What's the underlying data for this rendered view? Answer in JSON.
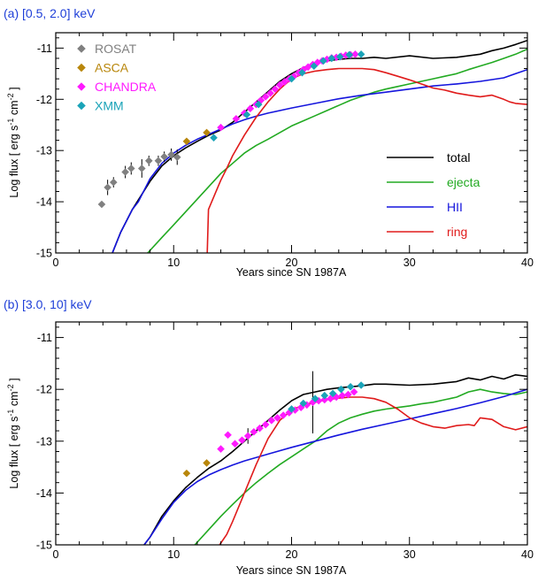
{
  "chart_data": [
    {
      "type": "line",
      "title": "(a) [0.5, 2.0] keV",
      "xlabel": "Years since SN 1987A",
      "ylabel_html": "Log flux [ erg s<tspan dy='-4' font-size='9'>-1</tspan><tspan dy='4'> cm</tspan><tspan dy='-4' font-size='9'>-2</tspan><tspan dy='4'> ]</tspan>",
      "ylabel": "Log flux [ erg s-1 cm-2 ]",
      "xlim": [
        0,
        40
      ],
      "ylim": [
        -15,
        -10.7
      ],
      "xticks": [
        "0",
        "10",
        "20",
        "30",
        "40"
      ],
      "yticks": [
        "-15",
        "-14",
        "-13",
        "-12",
        "-11"
      ],
      "grid": false,
      "legend": "right",
      "series": [
        {
          "name": "total",
          "color": "#000000",
          "x": [
            4.8,
            5.5,
            6.5,
            8,
            9,
            10,
            11,
            12,
            13,
            14,
            15,
            16,
            17,
            18,
            19,
            20,
            21,
            22,
            23,
            24,
            25,
            26,
            27,
            28,
            30,
            32,
            34,
            36,
            37,
            38,
            39,
            40
          ],
          "y": [
            -15,
            -14.6,
            -14.15,
            -13.6,
            -13.3,
            -13.1,
            -12.95,
            -12.82,
            -12.7,
            -12.6,
            -12.45,
            -12.25,
            -12.05,
            -11.85,
            -11.65,
            -11.5,
            -11.38,
            -11.3,
            -11.25,
            -11.22,
            -11.2,
            -11.2,
            -11.18,
            -11.2,
            -11.15,
            -11.2,
            -11.18,
            -11.12,
            -11.05,
            -11.0,
            -10.93,
            -10.85
          ]
        },
        {
          "name": "ejecta",
          "color": "#22aa22",
          "x": [
            7.8,
            9,
            10,
            11,
            12,
            13,
            14,
            15,
            16,
            17,
            18,
            19,
            20,
            21,
            22,
            23,
            24,
            25,
            26,
            27,
            28,
            29,
            30,
            31,
            32,
            33,
            34,
            35,
            36,
            37,
            38,
            39,
            40
          ],
          "y": [
            -15,
            -14.7,
            -14.45,
            -14.2,
            -13.95,
            -13.7,
            -13.45,
            -13.25,
            -13.05,
            -12.9,
            -12.78,
            -12.65,
            -12.52,
            -12.42,
            -12.32,
            -12.22,
            -12.12,
            -12.02,
            -11.94,
            -11.86,
            -11.8,
            -11.75,
            -11.7,
            -11.65,
            -11.6,
            -11.55,
            -11.5,
            -11.42,
            -11.35,
            -11.28,
            -11.2,
            -11.12,
            -11.02
          ]
        },
        {
          "name": "HII",
          "color": "#1515dd",
          "x": [
            4.8,
            5.5,
            6.5,
            7,
            8,
            9,
            10,
            11,
            12,
            13,
            14,
            15,
            16,
            17,
            18,
            20,
            22,
            24,
            26,
            28,
            30,
            32,
            34,
            36,
            38,
            39,
            40
          ],
          "y": [
            -15,
            -14.6,
            -14.15,
            -14.0,
            -13.55,
            -13.25,
            -13.05,
            -12.9,
            -12.78,
            -12.68,
            -12.58,
            -12.48,
            -12.4,
            -12.33,
            -12.27,
            -12.17,
            -12.08,
            -11.99,
            -11.92,
            -11.86,
            -11.8,
            -11.74,
            -11.7,
            -11.65,
            -11.58,
            -11.5,
            -11.42
          ]
        },
        {
          "name": "ring",
          "color": "#e01b1b",
          "x": [
            12.85,
            12.95,
            13.5,
            14,
            14.5,
            15,
            16,
            17,
            18,
            19,
            20,
            21,
            22,
            23,
            24,
            25,
            26,
            27,
            28,
            29,
            30,
            31,
            32,
            33,
            34,
            35,
            36,
            37,
            38,
            38.5,
            39,
            40
          ],
          "y": [
            -15,
            -14.15,
            -13.85,
            -13.58,
            -13.35,
            -13.1,
            -12.7,
            -12.35,
            -12.05,
            -11.8,
            -11.6,
            -11.5,
            -11.45,
            -11.42,
            -11.4,
            -11.4,
            -11.4,
            -11.42,
            -11.48,
            -11.55,
            -11.62,
            -11.7,
            -11.78,
            -11.82,
            -11.88,
            -11.92,
            -11.95,
            -11.92,
            -12.0,
            -12.05,
            -12.08,
            -12.1
          ]
        }
      ],
      "points": [
        {
          "name": "ROSAT",
          "color": "#808080",
          "x": [
            3.9,
            4.4,
            4.9,
            5.9,
            6.4,
            7.3,
            7.9,
            8.7,
            9.2,
            9.8,
            10.3
          ],
          "y": [
            -14.05,
            -13.72,
            -13.62,
            -13.42,
            -13.35,
            -13.35,
            -13.2,
            -13.2,
            -13.12,
            -13.08,
            -13.13
          ],
          "err": [
            0,
            0.15,
            0.1,
            0.12,
            0.12,
            0.18,
            0.1,
            0.1,
            0.1,
            0.12,
            0.15
          ]
        },
        {
          "name": "ASCA",
          "color": "#b8860b",
          "x": [
            11.1,
            12.8
          ],
          "y": [
            -12.82,
            -12.65
          ],
          "err": [
            0,
            0
          ]
        },
        {
          "name": "CHANDRA",
          "color": "#ff1aff",
          "x": [
            14.0,
            15.3,
            16.0,
            16.5,
            17.0,
            17.4,
            17.8,
            18.2,
            18.6,
            19.0,
            19.4,
            19.8,
            20.2,
            20.6,
            21.0,
            21.4,
            21.8,
            22.2,
            22.6,
            23.0,
            23.4,
            23.8,
            24.2,
            24.6,
            25.0,
            25.4
          ],
          "y": [
            -12.55,
            -12.38,
            -12.27,
            -12.18,
            -12.1,
            -12.02,
            -11.95,
            -11.88,
            -11.8,
            -11.72,
            -11.66,
            -11.6,
            -11.55,
            -11.48,
            -11.42,
            -11.37,
            -11.32,
            -11.28,
            -11.25,
            -11.22,
            -11.19,
            -11.18,
            -11.16,
            -11.14,
            -11.13,
            -11.12
          ],
          "err": []
        },
        {
          "name": "XMM",
          "color": "#1aa3b8",
          "x": [
            13.4,
            16.2,
            17.2,
            20.0,
            20.9,
            21.9,
            22.7,
            23.4,
            24.1,
            24.9,
            25.9
          ],
          "y": [
            -12.75,
            -12.3,
            -12.1,
            -11.6,
            -11.48,
            -11.35,
            -11.25,
            -11.2,
            -11.17,
            -11.13,
            -11.12
          ],
          "err": []
        }
      ],
      "legend_items": [
        {
          "label": "ROSAT",
          "color": "#808080",
          "kind": "marker"
        },
        {
          "label": "ASCA",
          "color": "#b8860b",
          "kind": "marker"
        },
        {
          "label": "CHANDRA",
          "color": "#ff1aff",
          "kind": "marker"
        },
        {
          "label": "XMM",
          "color": "#1aa3b8",
          "kind": "marker"
        },
        {
          "label": "total",
          "color": "#000000",
          "kind": "line"
        },
        {
          "label": "ejecta",
          "color": "#22aa22",
          "kind": "line"
        },
        {
          "label": "HII",
          "color": "#1515dd",
          "kind": "line"
        },
        {
          "label": "ring",
          "color": "#e01b1b",
          "kind": "line"
        }
      ]
    },
    {
      "type": "line",
      "title": "(b) [3.0, 10] keV",
      "xlabel": "Years since SN 1987A",
      "ylabel": "Log flux [ erg s-1 cm-2 ]",
      "xlim": [
        0,
        40
      ],
      "ylim": [
        -15,
        -10.7
      ],
      "xticks": [
        "0",
        "10",
        "20",
        "30",
        "40"
      ],
      "yticks": [
        "-15",
        "-14",
        "-13",
        "-12",
        "-11"
      ],
      "grid": false,
      "series": [
        {
          "name": "total",
          "color": "#000000",
          "x": [
            7.5,
            8,
            9,
            10,
            11,
            12,
            13,
            14,
            15,
            16,
            17,
            18,
            19,
            20,
            21,
            22,
            23,
            24,
            25,
            26,
            27,
            28,
            30,
            32,
            34,
            35,
            36,
            37,
            38,
            39,
            40
          ],
          "y": [
            -15,
            -14.85,
            -14.45,
            -14.15,
            -13.9,
            -13.7,
            -13.52,
            -13.38,
            -13.2,
            -13.0,
            -12.8,
            -12.6,
            -12.4,
            -12.22,
            -12.1,
            -12.05,
            -12.0,
            -11.97,
            -11.95,
            -11.93,
            -11.9,
            -11.9,
            -11.92,
            -11.9,
            -11.85,
            -11.78,
            -11.82,
            -11.75,
            -11.8,
            -11.72,
            -11.75
          ]
        },
        {
          "name": "ejecta",
          "color": "#22aa22",
          "x": [
            11.8,
            13,
            14,
            15,
            16,
            17,
            18,
            19,
            20,
            21,
            22,
            23,
            24,
            25,
            26,
            27,
            28,
            29,
            30,
            31,
            32,
            33,
            34,
            35,
            36,
            37,
            38,
            39,
            40
          ],
          "y": [
            -15,
            -14.7,
            -14.45,
            -14.22,
            -14.0,
            -13.8,
            -13.62,
            -13.45,
            -13.3,
            -13.15,
            -13.0,
            -12.8,
            -12.65,
            -12.55,
            -12.48,
            -12.42,
            -12.38,
            -12.35,
            -12.32,
            -12.28,
            -12.25,
            -12.2,
            -12.15,
            -12.05,
            -12.0,
            -12.05,
            -12.08,
            -12.1,
            -12.05
          ]
        },
        {
          "name": "HII",
          "color": "#1515dd",
          "x": [
            7.5,
            8,
            9,
            10,
            11,
            12,
            13,
            14,
            15,
            16,
            18,
            20,
            22,
            24,
            26,
            28,
            30,
            32,
            34,
            36,
            38,
            40
          ],
          "y": [
            -15,
            -14.85,
            -14.5,
            -14.18,
            -13.95,
            -13.78,
            -13.65,
            -13.55,
            -13.46,
            -13.38,
            -13.25,
            -13.12,
            -13.0,
            -12.88,
            -12.77,
            -12.67,
            -12.57,
            -12.47,
            -12.37,
            -12.26,
            -12.14,
            -12.0
          ]
        },
        {
          "name": "ring",
          "color": "#e01b1b",
          "x": [
            13.9,
            14.5,
            15,
            16,
            17,
            18,
            19,
            20,
            21,
            22,
            23,
            24,
            25,
            26,
            27,
            28,
            29,
            30,
            31,
            32,
            33,
            34,
            35,
            35.5,
            36,
            37,
            38,
            38.5,
            39,
            40
          ],
          "y": [
            -15,
            -14.8,
            -14.55,
            -14.0,
            -13.45,
            -12.95,
            -12.6,
            -12.4,
            -12.3,
            -12.25,
            -12.2,
            -12.17,
            -12.15,
            -12.15,
            -12.18,
            -12.25,
            -12.38,
            -12.55,
            -12.65,
            -12.72,
            -12.75,
            -12.7,
            -12.68,
            -12.7,
            -12.55,
            -12.58,
            -12.72,
            -12.75,
            -12.78,
            -12.72
          ]
        }
      ],
      "points": [
        {
          "name": "ASCA",
          "color": "#b8860b",
          "x": [
            11.1,
            12.8
          ],
          "y": [
            -13.62,
            -13.42
          ],
          "err": [
            0,
            0
          ]
        },
        {
          "name": "CHANDRA",
          "color": "#ff1aff",
          "x": [
            14.0,
            14.6,
            15.2,
            15.8,
            16.3,
            16.8,
            17.3,
            17.8,
            18.3,
            18.8,
            19.3,
            19.8,
            20.3,
            20.8,
            21.3,
            21.8,
            22.3,
            22.8,
            23.3,
            23.8,
            24.3,
            24.8,
            25.3
          ],
          "y": [
            -13.15,
            -12.88,
            -13.05,
            -12.98,
            -12.9,
            -12.82,
            -12.75,
            -12.68,
            -12.6,
            -12.55,
            -12.5,
            -12.45,
            -12.4,
            -12.35,
            -12.3,
            -12.25,
            -12.22,
            -12.2,
            -12.18,
            -12.15,
            -12.12,
            -12.1,
            -12.05
          ],
          "err": [
            0,
            0,
            0,
            0,
            0.15,
            0,
            0,
            0,
            0,
            0,
            0,
            0,
            0,
            0,
            0,
            0.6,
            0,
            0,
            0,
            0,
            0,
            0,
            0
          ]
        },
        {
          "name": "XMM",
          "color": "#1aa3b8",
          "x": [
            20.0,
            21.0,
            22.0,
            22.8,
            23.5,
            24.2,
            25.0,
            25.9
          ],
          "y": [
            -12.38,
            -12.27,
            -12.18,
            -12.12,
            -12.08,
            -12.0,
            -11.95,
            -11.92
          ],
          "err": []
        }
      ]
    }
  ]
}
